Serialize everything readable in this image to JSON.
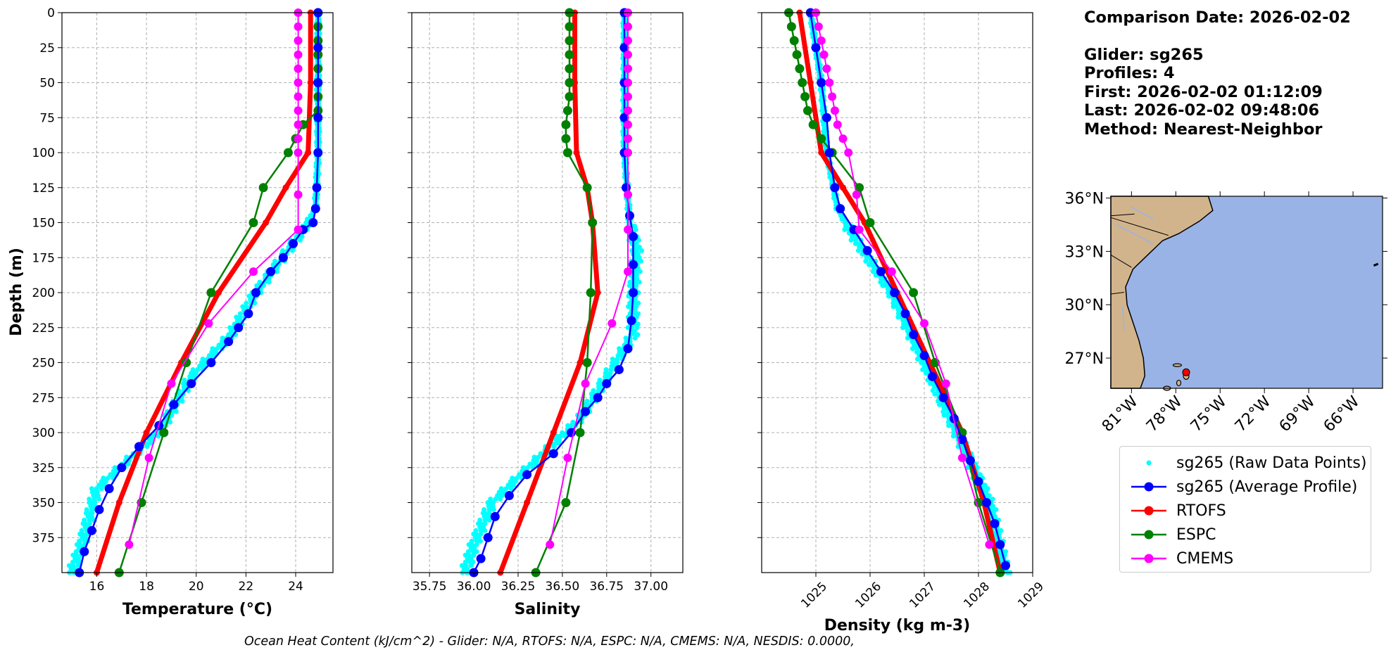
{
  "info": {
    "comparison_date": "Comparison Date: 2026-02-02",
    "glider": "Glider: sg265",
    "profiles": "Profiles: 4",
    "first": "First: 2026-02-02 01:12:09",
    "last": "Last: 2026-02-02 09:48:06",
    "method": "Method: Nearest-Neighbor"
  },
  "footer": "Ocean Heat Content (kJ/cm^2) - Glider: N/A,  RTOFS: N/A,  ESPC: N/A,  CMEMS: N/A,  NESDIS: 0.0000,",
  "legend": [
    {
      "label": "sg265 (Raw Data Points)",
      "color": "#00ffff",
      "style": "dots"
    },
    {
      "label": "sg265 (Average Profile)",
      "color": "#0000ff",
      "style": "line-marker"
    },
    {
      "label": "RTOFS",
      "color": "#ff0000",
      "style": "line-marker"
    },
    {
      "label": "ESPC",
      "color": "#008000",
      "style": "line-marker"
    },
    {
      "label": "CMEMS",
      "color": "#ff00ff",
      "style": "line-marker"
    }
  ],
  "colors": {
    "raw": "#00ffff",
    "glider": "#0000ff",
    "rtofs": "#ff0000",
    "espc": "#008000",
    "cmems": "#ff00ff",
    "land": "#d2b48c",
    "ocean": "#99b3e6",
    "marker": "#ff0000"
  },
  "chart_data": [
    {
      "type": "line",
      "xlabel": "Temperature (°C)",
      "ylabel": "Depth (m)",
      "xlim": [
        14.6,
        25.5
      ],
      "ylim": [
        400,
        0
      ],
      "xticks": [
        "16",
        "18",
        "20",
        "22",
        "24"
      ],
      "yticks": [
        "0",
        "25",
        "50",
        "75",
        "100",
        "125",
        "150",
        "175",
        "200",
        "225",
        "250",
        "275",
        "300",
        "325",
        "350",
        "375"
      ],
      "grid": true,
      "raw_points": {
        "depth": [
          0,
          50,
          100,
          140,
          160,
          200,
          230,
          260,
          300,
          340,
          380,
          400
        ],
        "x": [
          24.9,
          24.9,
          24.9,
          24.8,
          24.1,
          22.4,
          21.4,
          19.8,
          18.5,
          16.0,
          15.4,
          15.0
        ]
      },
      "series": [
        {
          "name": "sg265 (Average Profile)",
          "depth": [
            0,
            25,
            50,
            75,
            100,
            125,
            140,
            150,
            155,
            165,
            175,
            185,
            200,
            215,
            225,
            235,
            250,
            265,
            280,
            295,
            310,
            325,
            340,
            355,
            370,
            385,
            400
          ],
          "values": [
            24.9,
            24.9,
            24.9,
            24.9,
            24.9,
            24.85,
            24.8,
            24.7,
            24.3,
            23.9,
            23.5,
            23.0,
            22.4,
            22.1,
            21.7,
            21.3,
            20.6,
            19.8,
            19.1,
            18.5,
            17.7,
            17.0,
            16.5,
            16.1,
            15.8,
            15.5,
            15.3
          ]
        },
        {
          "name": "RTOFS",
          "depth": [
            0,
            50,
            100,
            125,
            150,
            200,
            250,
            300,
            350,
            400
          ],
          "values": [
            24.6,
            24.6,
            24.5,
            23.6,
            22.8,
            20.9,
            19.4,
            18.0,
            16.9,
            16.0
          ]
        },
        {
          "name": "ESPC",
          "depth": [
            0,
            10,
            20,
            30,
            40,
            50,
            60,
            70,
            80,
            90,
            100,
            125,
            150,
            200,
            250,
            300,
            350,
            400
          ],
          "values": [
            24.9,
            24.9,
            24.9,
            24.9,
            24.9,
            24.9,
            24.9,
            24.9,
            24.3,
            24.0,
            23.7,
            22.7,
            22.3,
            20.6,
            19.6,
            18.7,
            17.8,
            16.9
          ]
        },
        {
          "name": "CMEMS",
          "depth": [
            0,
            10,
            20,
            30,
            40,
            50,
            60,
            70,
            80,
            90,
            100,
            130,
            155,
            185,
            222,
            265,
            318,
            380
          ],
          "values": [
            24.1,
            24.1,
            24.1,
            24.1,
            24.1,
            24.1,
            24.1,
            24.1,
            24.1,
            24.1,
            24.1,
            24.1,
            24.1,
            22.3,
            20.5,
            19.0,
            18.1,
            17.3
          ]
        }
      ]
    },
    {
      "type": "line",
      "xlabel": "Salinity",
      "ylabel": "",
      "xlim": [
        35.65,
        37.18
      ],
      "ylim": [
        400,
        0
      ],
      "xticks": [
        "35.75",
        "36.00",
        "36.25",
        "36.50",
        "36.75",
        "37.00"
      ],
      "yticks": [],
      "grid": true,
      "raw_points": {
        "depth": [
          0,
          100,
          150,
          170,
          200,
          230,
          260,
          290,
          320,
          350,
          380,
          400
        ],
        "x": [
          36.85,
          36.85,
          36.88,
          36.92,
          36.9,
          36.9,
          36.75,
          36.6,
          36.35,
          36.1,
          36.0,
          35.95
        ]
      },
      "series": [
        {
          "name": "sg265 (Average Profile)",
          "depth": [
            0,
            25,
            50,
            75,
            100,
            125,
            145,
            160,
            180,
            200,
            220,
            240,
            255,
            265,
            275,
            285,
            300,
            315,
            330,
            345,
            360,
            375,
            390,
            400
          ],
          "values": [
            36.85,
            36.85,
            36.85,
            36.85,
            36.85,
            36.86,
            36.88,
            36.9,
            36.9,
            36.9,
            36.89,
            36.87,
            36.82,
            36.75,
            36.7,
            36.63,
            36.55,
            36.45,
            36.3,
            36.2,
            36.12,
            36.08,
            36.04,
            36.0
          ]
        },
        {
          "name": "RTOFS",
          "depth": [
            0,
            50,
            100,
            125,
            150,
            200,
            250,
            300,
            350,
            400
          ],
          "values": [
            36.57,
            36.57,
            36.58,
            36.64,
            36.67,
            36.7,
            36.6,
            36.45,
            36.3,
            36.15
          ]
        },
        {
          "name": "ESPC",
          "depth": [
            0,
            10,
            20,
            30,
            40,
            50,
            60,
            70,
            80,
            90,
            100,
            125,
            150,
            200,
            250,
            300,
            350,
            400
          ],
          "values": [
            36.54,
            36.54,
            36.54,
            36.54,
            36.54,
            36.54,
            36.54,
            36.53,
            36.52,
            36.52,
            36.53,
            36.64,
            36.67,
            36.66,
            36.64,
            36.6,
            36.52,
            36.35
          ]
        },
        {
          "name": "CMEMS",
          "depth": [
            0,
            10,
            20,
            30,
            40,
            50,
            60,
            70,
            80,
            90,
            100,
            130,
            155,
            185,
            222,
            265,
            318,
            380
          ],
          "values": [
            36.87,
            36.87,
            36.87,
            36.87,
            36.87,
            36.87,
            36.87,
            36.87,
            36.87,
            36.87,
            36.87,
            36.87,
            36.87,
            36.87,
            36.78,
            36.63,
            36.53,
            36.43
          ]
        }
      ]
    },
    {
      "type": "line",
      "xlabel": "Density (kg m-3)",
      "ylabel": "",
      "xlim": [
        1024.0,
        1029.0
      ],
      "ylim": [
        400,
        0
      ],
      "xticks": [
        "1025",
        "1026",
        "1027",
        "1028",
        "1029"
      ],
      "yticks": [],
      "grid": true,
      "raw_points": {
        "depth": [
          0,
          50,
          100,
          140,
          160,
          200,
          250,
          300,
          350,
          400
        ],
        "x": [
          1024.9,
          1025.1,
          1025.2,
          1025.4,
          1025.7,
          1026.4,
          1027.0,
          1027.6,
          1028.2,
          1028.5
        ]
      },
      "series": [
        {
          "name": "sg265 (Average Profile)",
          "depth": [
            0,
            25,
            50,
            75,
            100,
            125,
            140,
            155,
            170,
            185,
            200,
            215,
            230,
            245,
            260,
            275,
            290,
            305,
            320,
            335,
            350,
            365,
            380,
            395
          ],
          "values": [
            1024.9,
            1025.0,
            1025.1,
            1025.2,
            1025.25,
            1025.35,
            1025.45,
            1025.7,
            1025.95,
            1026.2,
            1026.45,
            1026.65,
            1026.8,
            1027.0,
            1027.15,
            1027.35,
            1027.55,
            1027.7,
            1027.85,
            1028.0,
            1028.15,
            1028.3,
            1028.4,
            1028.5
          ]
        },
        {
          "name": "RTOFS",
          "depth": [
            0,
            50,
            100,
            125,
            150,
            200,
            250,
            300,
            350,
            400
          ],
          "values": [
            1024.7,
            1024.9,
            1025.1,
            1025.5,
            1025.9,
            1026.5,
            1027.1,
            1027.7,
            1028.1,
            1028.4
          ]
        },
        {
          "name": "ESPC",
          "depth": [
            0,
            10,
            20,
            30,
            40,
            50,
            60,
            70,
            80,
            90,
            100,
            125,
            150,
            200,
            250,
            300,
            350,
            400
          ],
          "values": [
            1024.5,
            1024.55,
            1024.6,
            1024.65,
            1024.7,
            1024.75,
            1024.8,
            1024.85,
            1024.95,
            1025.1,
            1025.3,
            1025.8,
            1026.0,
            1026.8,
            1027.2,
            1027.7,
            1028.0,
            1028.4
          ]
        },
        {
          "name": "CMEMS",
          "depth": [
            0,
            10,
            20,
            30,
            40,
            50,
            60,
            70,
            80,
            90,
            100,
            130,
            155,
            185,
            222,
            265,
            318,
            380
          ],
          "values": [
            1025.0,
            1025.05,
            1025.1,
            1025.15,
            1025.2,
            1025.25,
            1025.3,
            1025.35,
            1025.4,
            1025.5,
            1025.6,
            1025.75,
            1025.8,
            1026.4,
            1027.0,
            1027.4,
            1027.7,
            1028.2
          ]
        }
      ]
    }
  ],
  "map": {
    "lat_ticks": [
      "36°N",
      "33°N",
      "30°N",
      "27°N"
    ],
    "lon_ticks": [
      "81°W",
      "78°W",
      "75°W",
      "72°W",
      "69°W",
      "66°W"
    ],
    "marker": {
      "lat": 26.2,
      "lon": -77.3
    }
  }
}
